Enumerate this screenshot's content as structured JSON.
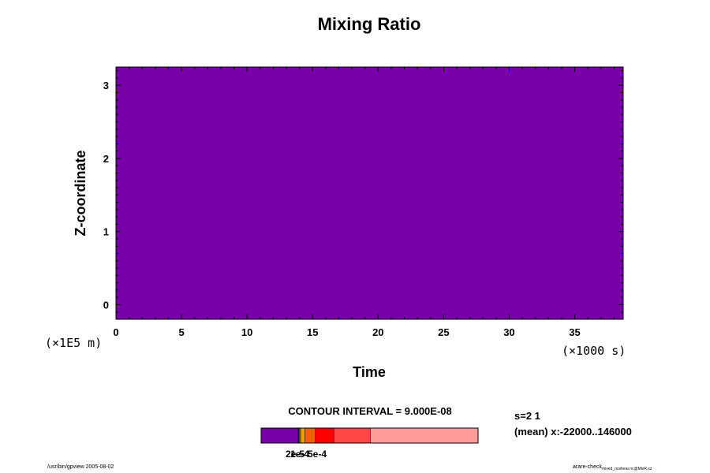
{
  "chart_data": {
    "type": "heatmap",
    "title": "Mixing Ratio",
    "xlabel": "Time",
    "ylabel": "Z-coordinate",
    "x_unit": "(×1000 s)",
    "y_unit": "(×1E5 m)",
    "xlim": [
      0,
      38.7
    ],
    "ylim": [
      -0.2,
      3.25
    ],
    "x_ticks": [
      "0",
      "5",
      "10",
      "15",
      "20",
      "25",
      "30",
      "35"
    ],
    "x_tick_values": [
      0,
      5,
      10,
      15,
      20,
      25,
      30,
      35
    ],
    "y_ticks": [
      "0",
      "1",
      "2",
      "3"
    ],
    "y_tick_values": [
      0,
      1,
      2,
      3
    ],
    "field_color": "#7800a8",
    "field_value_level": 0,
    "contour_interval": "CONTOUR INTERVAL = 9.000E-08",
    "colorbar": {
      "segments": [
        {
          "color": "#7800a8",
          "fraction": 0.17
        },
        {
          "color": "#1a1a90",
          "fraction": 0.004
        },
        {
          "color": "#2aa02a",
          "fraction": 0.004
        },
        {
          "color": "#d8c800",
          "fraction": 0.004
        },
        {
          "color": "#f0a000",
          "fraction": 0.02
        },
        {
          "color": "#f06000",
          "fraction": 0.048
        },
        {
          "color": "#ff0000",
          "fraction": 0.085
        },
        {
          "color": "#ff4848",
          "fraction": 0.168
        },
        {
          "color": "#ff9c9c",
          "fraction": 0.497
        }
      ],
      "labels": [
        "2e-5",
        "1e-4",
        "5e-4"
      ]
    },
    "info_lines": [
      "s=2 1",
      "(mean) x:-22000..146000"
    ]
  },
  "footer": {
    "left": "/usr/bin/gpview 2005-08-02",
    "right_main": "arare-check",
    "right_sub": "mixed_noshear.nc@MixR,xz"
  }
}
